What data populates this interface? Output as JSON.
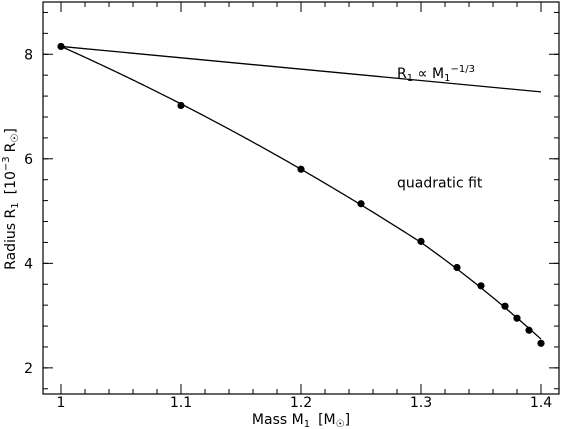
{
  "chart_data": {
    "type": "scatter",
    "xlabel": "Mass M",
    "xlabel_sub": "1",
    "xlabel_unit": "[M",
    "xlabel_unit_close": "]",
    "ylabel": "Radius R",
    "ylabel_sub": "1",
    "ylabel_unit_open": "[10",
    "ylabel_unit_exp": "−3",
    "ylabel_unit_mid": "R",
    "ylabel_unit_close": "]",
    "xlim": [
      0.985,
      1.415
    ],
    "ylim": [
      1.5,
      9.0
    ],
    "x_ticks": [
      1,
      1.1,
      1.2,
      1.3,
      1.4
    ],
    "x_tick_labels": [
      "1",
      "1.1",
      "1.2",
      "1.3",
      "1.4"
    ],
    "y_ticks": [
      2,
      4,
      6,
      8
    ],
    "y_tick_labels": [
      "2",
      "4",
      "6",
      "8"
    ],
    "x_minor_step": 0.02,
    "y_minor_step": 0.4,
    "grid": false,
    "series": [
      {
        "kind": "points",
        "x": [
          1.0,
          1.1,
          1.2,
          1.25,
          1.3,
          1.33,
          1.35,
          1.37,
          1.38,
          1.39,
          1.4
        ],
        "y": [
          8.15,
          7.02,
          5.8,
          5.14,
          4.42,
          3.92,
          3.57,
          3.18,
          2.95,
          2.72,
          2.47
        ]
      },
      {
        "kind": "line",
        "x": [
          1.0,
          1.4
        ],
        "y": [
          8.15,
          7.28
        ]
      },
      {
        "kind": "line",
        "x": [
          1.0,
          1.1,
          1.2,
          1.3,
          1.4
        ],
        "y": [
          8.15,
          7.05,
          5.8,
          4.4,
          2.55
        ]
      }
    ],
    "annotations": {
      "power_law": {
        "base": "R",
        "base_sub": "1",
        "mid": " ∝ M",
        "mid_sub": "1",
        "exp": "−1/3",
        "at": [
          1.28,
          7.55
        ]
      },
      "fit": {
        "text": "quadratic fit",
        "at": [
          1.28,
          5.45
        ]
      }
    }
  }
}
